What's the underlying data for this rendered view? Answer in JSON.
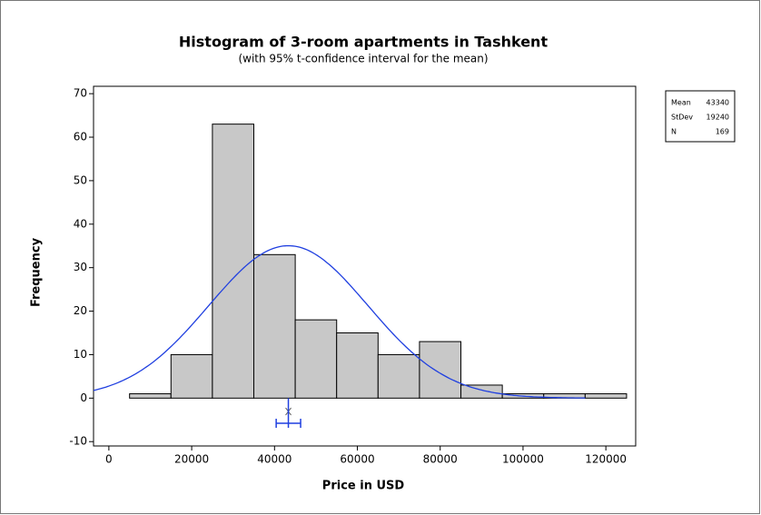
{
  "chart_data": {
    "type": "histogram",
    "title": "Histogram of 3-room apartments in Tashkent",
    "subtitle": "(with 95% t-confidence interval for the mean)",
    "x_label": "Price in USD",
    "y_label": "Frequency",
    "bins": [
      5000,
      15000,
      25000,
      35000,
      45000,
      55000,
      65000,
      75000,
      85000,
      95000,
      105000,
      115000,
      125000
    ],
    "values": [
      1,
      10,
      63,
      33,
      18,
      15,
      10,
      13,
      3,
      1,
      1,
      1
    ],
    "color": "#c8c8c8",
    "curve_color": "#1f3fe0",
    "xlim": [
      -3700,
      127200
    ],
    "ylim": [
      -11,
      71.7
    ],
    "xticks": [
      0,
      20000,
      40000,
      60000,
      80000,
      100000,
      120000
    ],
    "yticks": [
      -10,
      0,
      10,
      20,
      30,
      40,
      50,
      60,
      70
    ],
    "stats": {
      "labels": [
        "Mean",
        "StDev",
        "N"
      ],
      "values": [
        43340,
        19240,
        169
      ]
    },
    "ci_lower": 40400,
    "ci_upper": 46300
  }
}
